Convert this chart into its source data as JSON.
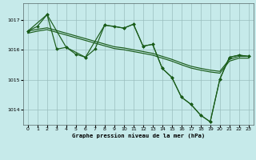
{
  "title": "Graphe pression niveau de la mer (hPa)",
  "bg_color": "#c6eaea",
  "grid_color": "#9abebe",
  "line_color": "#1a5c1a",
  "xlim": [
    -0.5,
    23.5
  ],
  "ylim": [
    1013.5,
    1017.55
  ],
  "yticks": [
    1014,
    1015,
    1016,
    1017
  ],
  "xticks": [
    0,
    1,
    2,
    3,
    4,
    5,
    6,
    7,
    8,
    9,
    10,
    11,
    12,
    13,
    14,
    15,
    16,
    17,
    18,
    19,
    20,
    21,
    22,
    23
  ],
  "line1_x": [
    0,
    1,
    2,
    3,
    4,
    5,
    6,
    7,
    8,
    9,
    10,
    11,
    12,
    13,
    14,
    15,
    16,
    17,
    18,
    19,
    20,
    21,
    22,
    23
  ],
  "line1_y": [
    1016.62,
    1016.68,
    1016.73,
    1016.64,
    1016.55,
    1016.46,
    1016.37,
    1016.28,
    1016.19,
    1016.1,
    1016.06,
    1016.0,
    1015.94,
    1015.88,
    1015.78,
    1015.68,
    1015.56,
    1015.45,
    1015.38,
    1015.32,
    1015.28,
    1015.68,
    1015.78,
    1015.78
  ],
  "line2_x": [
    0,
    1,
    2,
    3,
    4,
    5,
    6,
    7,
    8,
    9,
    10,
    11,
    12,
    13,
    14,
    15,
    16,
    17,
    18,
    19,
    20,
    21,
    22,
    23
  ],
  "line2_y": [
    1016.55,
    1016.62,
    1016.67,
    1016.58,
    1016.49,
    1016.4,
    1016.31,
    1016.22,
    1016.13,
    1016.04,
    1016.0,
    1015.94,
    1015.88,
    1015.82,
    1015.72,
    1015.62,
    1015.5,
    1015.39,
    1015.32,
    1015.26,
    1015.22,
    1015.62,
    1015.72,
    1015.72
  ],
  "line3_x": [
    0,
    1,
    2,
    3,
    4,
    5,
    6,
    7,
    8,
    9,
    10,
    11,
    12,
    13,
    14,
    15,
    16,
    17,
    18,
    19,
    20,
    21,
    22,
    23
  ],
  "line3_y": [
    1016.62,
    1016.78,
    1017.17,
    1016.02,
    1016.08,
    1015.85,
    1015.75,
    1016.02,
    1016.82,
    1016.78,
    1016.72,
    1016.85,
    1016.12,
    1016.18,
    1015.38,
    1015.08,
    1014.42,
    1014.18,
    1013.82,
    1013.6,
    1015.02,
    1015.75,
    1015.82,
    1015.78
  ],
  "line4_x": [
    0,
    2,
    4,
    6,
    8,
    10,
    11,
    12,
    13,
    14,
    15,
    16,
    17,
    18,
    19,
    20,
    21,
    22,
    23
  ],
  "line4_y": [
    1016.62,
    1017.17,
    1016.08,
    1015.75,
    1016.82,
    1016.72,
    1016.85,
    1016.12,
    1016.18,
    1015.38,
    1015.08,
    1014.42,
    1014.18,
    1013.82,
    1013.6,
    1015.02,
    1015.75,
    1015.82,
    1015.78
  ]
}
